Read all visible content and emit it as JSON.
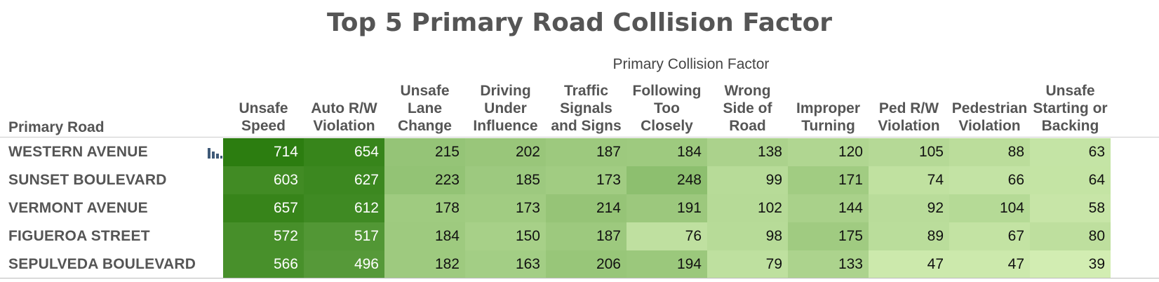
{
  "chart_data": {
    "type": "heatmap",
    "title": "Top 5 Primary Road Collision Factor",
    "column_dimension_label": "Primary Collision Factor",
    "row_dimension_label": "Primary Road",
    "columns": [
      [
        "Unsafe",
        "Speed"
      ],
      [
        "Auto R/W",
        "Violation"
      ],
      [
        "Unsafe",
        "Lane",
        "Change"
      ],
      [
        "Driving",
        "Under",
        "Influence"
      ],
      [
        "Traffic",
        "Signals",
        "and Signs"
      ],
      [
        "Following",
        "Too",
        "Closely"
      ],
      [
        "Wrong",
        "Side of",
        "Road"
      ],
      [
        "Improper",
        "Turning"
      ],
      [
        "Ped R/W",
        "Violation"
      ],
      [
        "Pedestrian",
        "Violation"
      ],
      [
        "Unsafe",
        "Starting or",
        "Backing"
      ]
    ],
    "rows": [
      {
        "label": "WESTERN AVENUE",
        "values": [
          714,
          654,
          215,
          202,
          187,
          184,
          138,
          120,
          105,
          88,
          63
        ]
      },
      {
        "label": "SUNSET BOULEVARD",
        "values": [
          603,
          627,
          223,
          185,
          173,
          248,
          99,
          171,
          74,
          66,
          64
        ]
      },
      {
        "label": "VERMONT AVENUE",
        "values": [
          657,
          612,
          178,
          173,
          214,
          191,
          102,
          144,
          92,
          104,
          58
        ]
      },
      {
        "label": "FIGUEROA STREET",
        "values": [
          572,
          517,
          184,
          150,
          187,
          76,
          98,
          175,
          89,
          67,
          80
        ]
      },
      {
        "label": "SEPULVEDA BOULEVARD",
        "values": [
          566,
          496,
          182,
          163,
          206,
          194,
          79,
          133,
          47,
          47,
          39
        ]
      }
    ],
    "color_scale": {
      "low": "#d2edb2",
      "high": "#2c7d10"
    },
    "text_color_dark": "#111111",
    "text_color_light": "#ffffff"
  },
  "row_icon": "bar-chart-icon"
}
